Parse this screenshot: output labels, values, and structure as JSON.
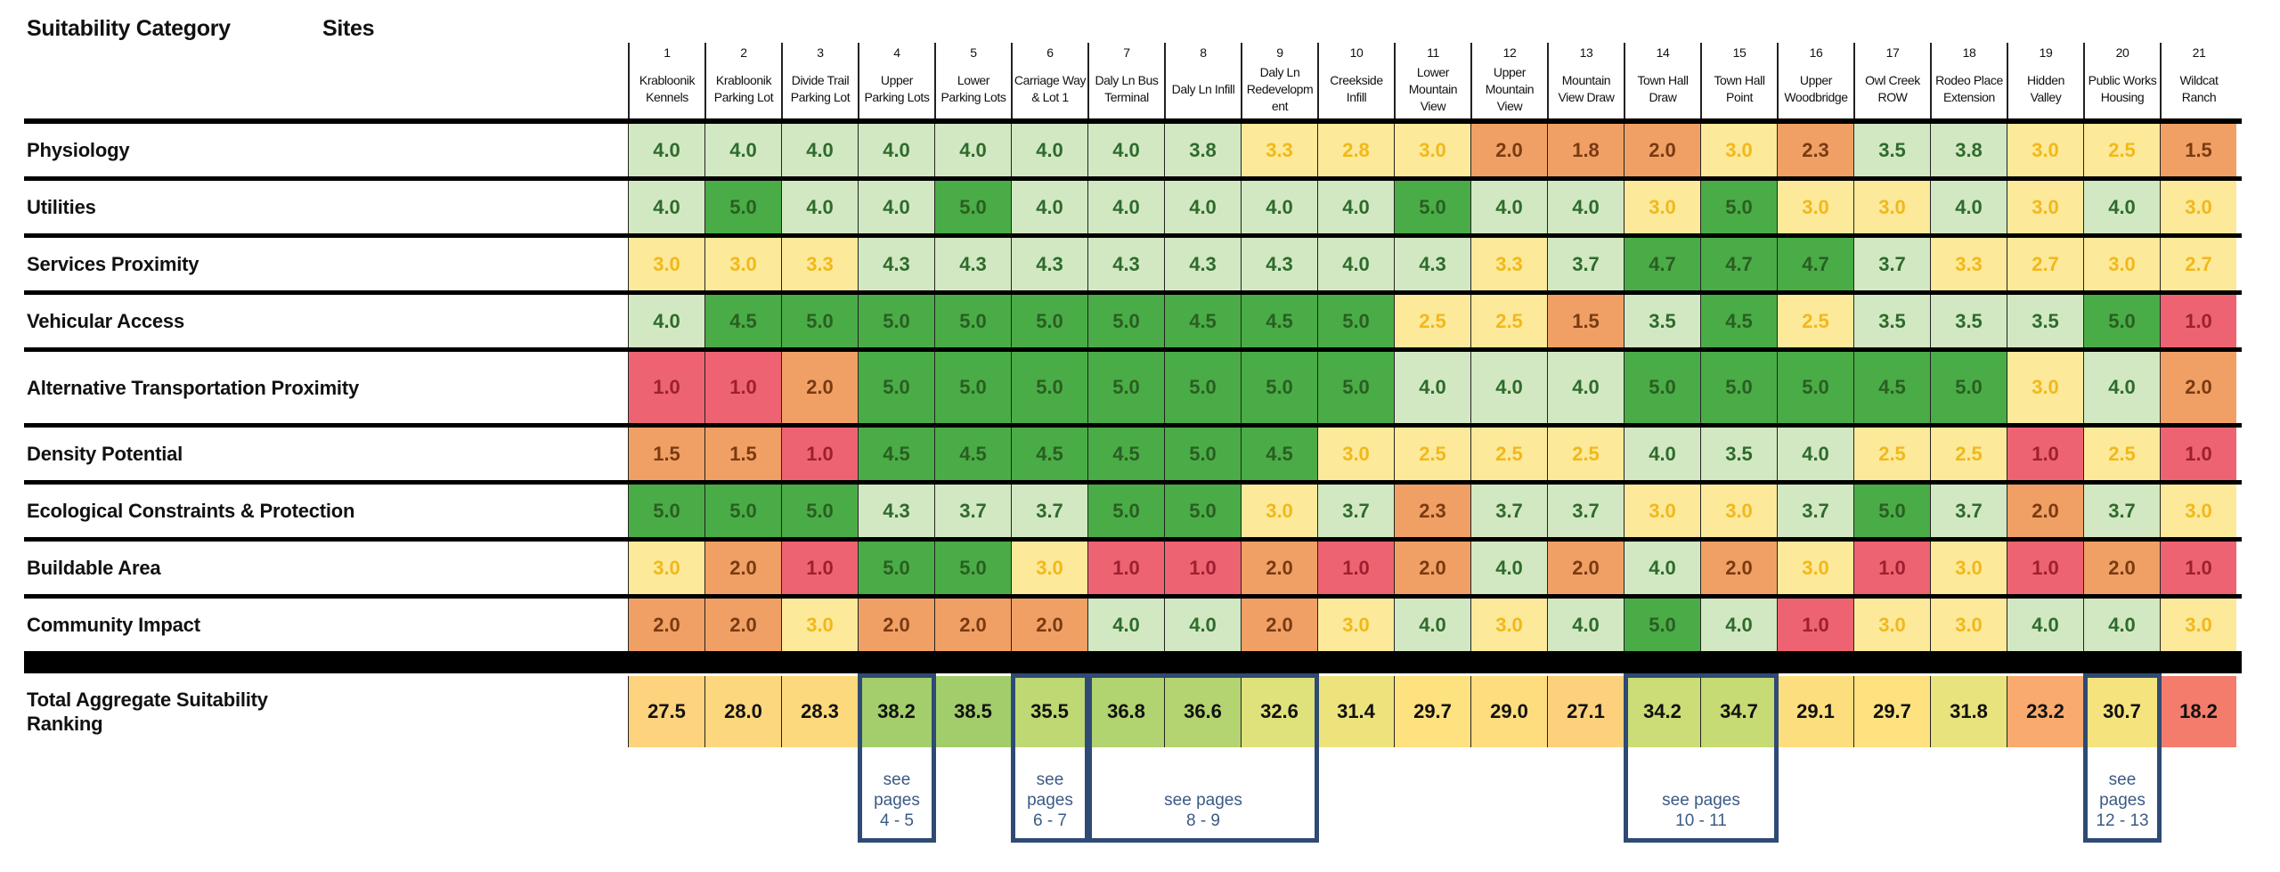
{
  "header": {
    "category_title": "Suitability Category",
    "sites_title": "Sites"
  },
  "sites": [
    {
      "num": "1",
      "name": "Krabloonik\nKennels"
    },
    {
      "num": "2",
      "name": "Krabloonik\nParking Lot"
    },
    {
      "num": "3",
      "name": "Divide Trail\nParking Lot"
    },
    {
      "num": "4",
      "name": "Upper\nParking Lots"
    },
    {
      "num": "5",
      "name": "Lower\nParking Lots"
    },
    {
      "num": "6",
      "name": "Carriage Way\n& Lot 1"
    },
    {
      "num": "7",
      "name": "Daly Ln Bus\nTerminal"
    },
    {
      "num": "8",
      "name": "Daly Ln Infill"
    },
    {
      "num": "9",
      "name": "Daly Ln\nRedevelopm\nent"
    },
    {
      "num": "10",
      "name": "Creekside\nInfill"
    },
    {
      "num": "11",
      "name": "Lower\nMountain\nView"
    },
    {
      "num": "12",
      "name": "Upper\nMountain\nView"
    },
    {
      "num": "13",
      "name": "Mountain\nView Draw"
    },
    {
      "num": "14",
      "name": "Town Hall\nDraw"
    },
    {
      "num": "15",
      "name": "Town Hall\nPoint"
    },
    {
      "num": "16",
      "name": "Upper\nWoodbridge"
    },
    {
      "num": "17",
      "name": "Owl Creek\nROW"
    },
    {
      "num": "18",
      "name": "Rodeo Place\nExtension"
    },
    {
      "num": "19",
      "name": "Hidden\nValley"
    },
    {
      "num": "20",
      "name": "Public Works\nHousing"
    },
    {
      "num": "21",
      "name": "Wildcat\nRanch"
    }
  ],
  "categories": [
    {
      "label": "Physiology",
      "values": [
        "4.0",
        "4.0",
        "4.0",
        "4.0",
        "4.0",
        "4.0",
        "4.0",
        "3.8",
        "3.3",
        "2.8",
        "3.0",
        "2.0",
        "1.8",
        "2.0",
        "3.0",
        "2.3",
        "3.5",
        "3.8",
        "3.0",
        "2.5",
        "1.5"
      ]
    },
    {
      "label": "Utilities",
      "values": [
        "4.0",
        "5.0",
        "4.0",
        "4.0",
        "5.0",
        "4.0",
        "4.0",
        "4.0",
        "4.0",
        "4.0",
        "5.0",
        "4.0",
        "4.0",
        "3.0",
        "5.0",
        "3.0",
        "3.0",
        "4.0",
        "3.0",
        "4.0",
        "3.0"
      ]
    },
    {
      "label": "Services Proximity",
      "values": [
        "3.0",
        "3.0",
        "3.3",
        "4.3",
        "4.3",
        "4.3",
        "4.3",
        "4.3",
        "4.3",
        "4.0",
        "4.3",
        "3.3",
        "3.7",
        "4.7",
        "4.7",
        "4.7",
        "3.7",
        "3.3",
        "2.7",
        "3.0",
        "2.7"
      ]
    },
    {
      "label": "Vehicular Access",
      "values": [
        "4.0",
        "4.5",
        "5.0",
        "5.0",
        "5.0",
        "5.0",
        "5.0",
        "4.5",
        "4.5",
        "5.0",
        "2.5",
        "2.5",
        "1.5",
        "3.5",
        "4.5",
        "2.5",
        "3.5",
        "3.5",
        "3.5",
        "5.0",
        "1.0"
      ]
    },
    {
      "label": "Alternative Transportation Proximity",
      "tall": true,
      "values": [
        "1.0",
        "1.0",
        "2.0",
        "5.0",
        "5.0",
        "5.0",
        "5.0",
        "5.0",
        "5.0",
        "5.0",
        "4.0",
        "4.0",
        "4.0",
        "5.0",
        "5.0",
        "5.0",
        "4.5",
        "5.0",
        "3.0",
        "4.0",
        "2.0"
      ]
    },
    {
      "label": "Density Potential",
      "values": [
        "1.5",
        "1.5",
        "1.0",
        "4.5",
        "4.5",
        "4.5",
        "4.5",
        "5.0",
        "4.5",
        "3.0",
        "2.5",
        "2.5",
        "2.5",
        "4.0",
        "3.5",
        "4.0",
        "2.5",
        "2.5",
        "1.0",
        "2.5",
        "1.0"
      ]
    },
    {
      "label": "Ecological Constraints & Protection",
      "values": [
        "5.0",
        "5.0",
        "5.0",
        "4.3",
        "3.7",
        "3.7",
        "5.0",
        "5.0",
        "3.0",
        "3.7",
        "2.3",
        "3.7",
        "3.7",
        "3.0",
        "3.0",
        "3.7",
        "5.0",
        "3.7",
        "2.0",
        "3.7",
        "3.0"
      ]
    },
    {
      "label": "Buildable Area",
      "values": [
        "3.0",
        "2.0",
        "1.0",
        "5.0",
        "5.0",
        "3.0",
        "1.0",
        "1.0",
        "2.0",
        "1.0",
        "2.0",
        "4.0",
        "2.0",
        "4.0",
        "2.0",
        "3.0",
        "1.0",
        "3.0",
        "1.0",
        "2.0",
        "1.0"
      ]
    },
    {
      "label": "Community Impact",
      "values": [
        "2.0",
        "2.0",
        "3.0",
        "2.0",
        "2.0",
        "2.0",
        "4.0",
        "4.0",
        "2.0",
        "3.0",
        "4.0",
        "3.0",
        "4.0",
        "5.0",
        "4.0",
        "1.0",
        "3.0",
        "3.0",
        "4.0",
        "4.0",
        "3.0"
      ]
    }
  ],
  "total": {
    "label": "Total Aggregate Suitability Ranking",
    "values": [
      "27.5",
      "28.0",
      "28.3",
      "38.2",
      "38.5",
      "35.5",
      "36.8",
      "36.6",
      "32.6",
      "31.4",
      "29.7",
      "29.0",
      "27.1",
      "34.2",
      "34.7",
      "29.1",
      "29.7",
      "31.8",
      "23.2",
      "30.7",
      "18.2"
    ]
  },
  "page_refs": [
    {
      "from_site": 4,
      "to_site": 4,
      "see": "see pages",
      "pages": "4 - 5"
    },
    {
      "from_site": 6,
      "to_site": 6,
      "see": "see pages",
      "pages": "6 - 7"
    },
    {
      "from_site": 7,
      "to_site": 9,
      "see": "see pages",
      "pages": "8 - 9"
    },
    {
      "from_site": 14,
      "to_site": 15,
      "see": "see pages",
      "pages": "10 - 11"
    },
    {
      "from_site": 20,
      "to_site": 20,
      "see": "see pages",
      "pages": "12 - 13"
    }
  ],
  "colors": {
    "score5": "#4aac46",
    "score4": "#d2e8c2",
    "score3": "#fce99a",
    "score2": "#f0a064",
    "score1": "#ee6371",
    "ref_border": "#2f4a74"
  }
}
